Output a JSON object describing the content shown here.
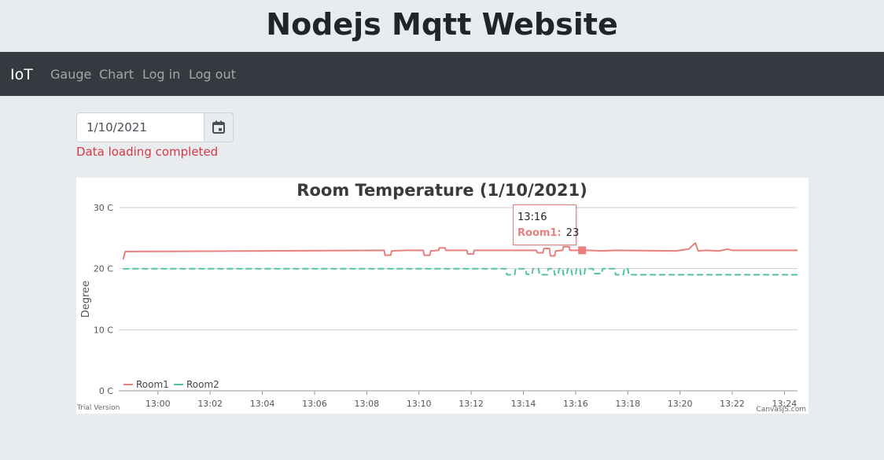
{
  "header": {
    "title": "Nodejs Mqtt Website"
  },
  "nav": {
    "brand": "IoT",
    "items": [
      {
        "label": "Gauge"
      },
      {
        "label": "Chart"
      },
      {
        "label": "Log in"
      },
      {
        "label": "Log out"
      }
    ]
  },
  "date_picker": {
    "value": "1/10/2021",
    "icon": "calendar-icon"
  },
  "status": {
    "text": "Data loading completed",
    "color": "#dc3545"
  },
  "tooltip": {
    "time": "13:16",
    "series": "Room1:",
    "value": "23"
  },
  "footer": {
    "trial": "Trial Version",
    "credit": "CanvasJS.com"
  },
  "chart_data": {
    "type": "line",
    "title": "Room Temperature (1/10/2021)",
    "ylabel": "Degree",
    "xlabel": "",
    "ylim": [
      0,
      30
    ],
    "xlim": [
      "12:58:30",
      "13:24:30"
    ],
    "y_ticks": [
      "0 C",
      "10 C",
      "20 C",
      "30 C"
    ],
    "x_ticks": [
      "13:00",
      "13:02",
      "13:04",
      "13:06",
      "13:08",
      "13:10",
      "13:12",
      "13:14",
      "13:16",
      "13:18",
      "13:20",
      "13:22",
      "13:24"
    ],
    "grid": true,
    "legend_placement": "bottom-left",
    "series": [
      {
        "name": "Room1",
        "color": "#e88080",
        "dash": "solid",
        "points": [
          [
            "12:58:40",
            21.5
          ],
          [
            "12:58:45",
            22.8
          ],
          [
            "13:08:40",
            23.0
          ],
          [
            "13:08:42",
            22.2
          ],
          [
            "13:08:55",
            22.2
          ],
          [
            "13:08:57",
            22.9
          ],
          [
            "13:09:30",
            23.0
          ],
          [
            "13:10:10",
            23.0
          ],
          [
            "13:10:12",
            22.2
          ],
          [
            "13:10:25",
            22.2
          ],
          [
            "13:10:27",
            22.9
          ],
          [
            "13:10:45",
            23.0
          ],
          [
            "13:10:47",
            23.4
          ],
          [
            "13:11:00",
            23.4
          ],
          [
            "13:11:02",
            23.0
          ],
          [
            "13:11:50",
            23.0
          ],
          [
            "13:11:52",
            22.4
          ],
          [
            "13:12:05",
            22.4
          ],
          [
            "13:12:07",
            23.0
          ],
          [
            "13:14:30",
            23.0
          ],
          [
            "13:14:32",
            22.6
          ],
          [
            "13:14:45",
            22.6
          ],
          [
            "13:14:47",
            23.3
          ],
          [
            "13:15:00",
            23.3
          ],
          [
            "13:15:02",
            22.1
          ],
          [
            "13:15:12",
            22.1
          ],
          [
            "13:15:14",
            22.9
          ],
          [
            "13:15:30",
            23.0
          ],
          [
            "13:15:32",
            23.6
          ],
          [
            "13:15:45",
            23.6
          ],
          [
            "13:15:47",
            23.0
          ],
          [
            "13:16:10",
            23.0
          ],
          [
            "13:16:30",
            23.0
          ],
          [
            "13:17:00",
            22.9
          ],
          [
            "13:17:30",
            23.0
          ],
          [
            "13:19:50",
            22.9
          ],
          [
            "13:20:20",
            23.2
          ],
          [
            "13:20:35",
            24.2
          ],
          [
            "13:20:42",
            22.9
          ],
          [
            "13:21:00",
            23.0
          ],
          [
            "13:21:30",
            22.9
          ],
          [
            "13:21:50",
            23.2
          ],
          [
            "13:22:00",
            23.0
          ],
          [
            "13:24:30",
            23.0
          ]
        ]
      },
      {
        "name": "Room2",
        "color": "#53c4a1",
        "dash": "dashed",
        "points": [
          [
            "12:58:40",
            20.0
          ],
          [
            "13:13:20",
            20.0
          ],
          [
            "13:13:22",
            19.0
          ],
          [
            "13:13:40",
            19.0
          ],
          [
            "13:13:42",
            20.0
          ],
          [
            "13:14:05",
            20.0
          ],
          [
            "13:14:07",
            19.1
          ],
          [
            "13:14:20",
            19.1
          ],
          [
            "13:14:22",
            20.0
          ],
          [
            "13:14:35",
            20.0
          ],
          [
            "13:14:37",
            19.0
          ],
          [
            "13:14:55",
            19.0
          ],
          [
            "13:14:57",
            20.0
          ],
          [
            "13:15:10",
            20.0
          ],
          [
            "13:15:12",
            19.0
          ],
          [
            "13:15:20",
            19.0
          ],
          [
            "13:15:22",
            20.0
          ],
          [
            "13:15:30",
            20.0
          ],
          [
            "13:15:32",
            19.0
          ],
          [
            "13:15:40",
            19.0
          ],
          [
            "13:15:42",
            20.0
          ],
          [
            "13:15:50",
            20.0
          ],
          [
            "13:15:52",
            19.0
          ],
          [
            "13:16:00",
            19.0
          ],
          [
            "13:16:02",
            20.0
          ],
          [
            "13:16:10",
            20.0
          ],
          [
            "13:16:12",
            19.0
          ],
          [
            "13:16:20",
            19.0
          ],
          [
            "13:16:22",
            20.0
          ],
          [
            "13:16:40",
            20.0
          ],
          [
            "13:16:42",
            19.2
          ],
          [
            "13:17:00",
            19.2
          ],
          [
            "13:17:02",
            20.0
          ],
          [
            "13:17:30",
            20.0
          ],
          [
            "13:17:32",
            19.0
          ],
          [
            "13:17:50",
            19.0
          ],
          [
            "13:17:52",
            20.0
          ],
          [
            "13:18:00",
            20.0
          ],
          [
            "13:18:02",
            19.0
          ],
          [
            "13:24:30",
            19.0
          ]
        ]
      }
    ],
    "highlight": {
      "series": "Room1",
      "x": "13:16:15",
      "y": 23
    }
  }
}
